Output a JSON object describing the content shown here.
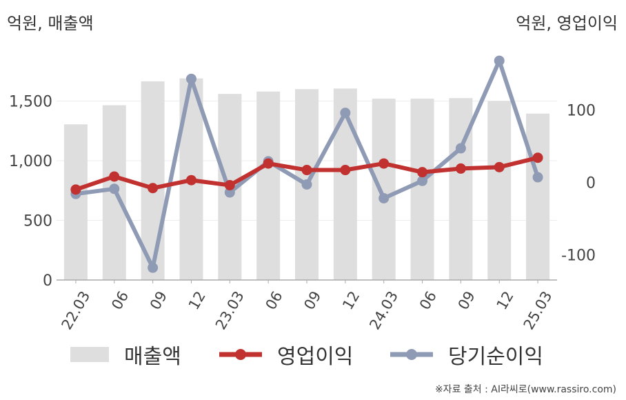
{
  "unit_left": "억원, 매출액",
  "unit_right": "억원, 영업이익",
  "source": "※자료 출처 : AI라씨로(www.rassiro.com)",
  "colors": {
    "revenue": "#dedede",
    "operating_profit": "#c0312f",
    "net_income": "#8f9ab4",
    "axis": "#aaaaaa",
    "grid": "#ececec"
  },
  "chart_data": {
    "type": "bar",
    "categories": [
      "22.03",
      "06",
      "09",
      "12",
      "23.03",
      "06",
      "09",
      "12",
      "24.03",
      "06",
      "09",
      "12",
      "25.03"
    ],
    "left_axis": {
      "ylim": [
        0,
        1850
      ],
      "ticks": [
        0,
        500,
        1000,
        1500
      ],
      "tick_labels": [
        "0",
        "500",
        "1,000",
        "1,500"
      ]
    },
    "right_axis": {
      "ylim": [
        -135,
        170
      ],
      "ticks": [
        -100,
        0,
        100
      ],
      "tick_labels": [
        "-100",
        "0",
        "100"
      ]
    },
    "series": [
      {
        "name": "매출액",
        "type": "bar",
        "axis": "left",
        "color": "#dedede",
        "values": [
          1305,
          1465,
          1665,
          1690,
          1560,
          1580,
          1600,
          1605,
          1520,
          1520,
          1525,
          1500,
          1395
        ]
      },
      {
        "name": "영업이익",
        "type": "line",
        "axis": "right",
        "color": "#c0312f",
        "values": [
          -10,
          8,
          -8,
          3,
          -4,
          26,
          17,
          17,
          26,
          14,
          19,
          21,
          34
        ]
      },
      {
        "name": "당기순이익",
        "type": "line",
        "axis": "right",
        "color": "#8f9ab4",
        "values": [
          -16,
          -9,
          -118,
          143,
          -14,
          29,
          -3,
          96,
          -22,
          2,
          47,
          168,
          7
        ]
      }
    ],
    "grid": true,
    "legend": "bottom"
  }
}
